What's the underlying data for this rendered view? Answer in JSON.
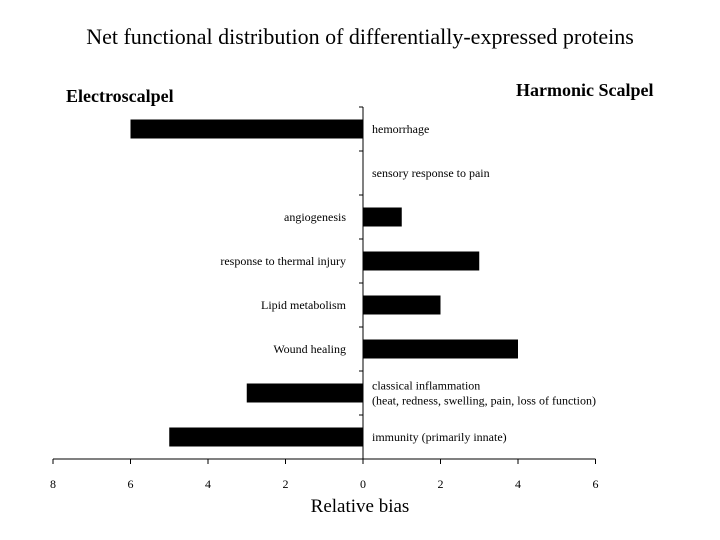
{
  "chart_data": {
    "type": "bar",
    "orientation": "horizontal",
    "title": "Net functional distribution of differentially-expressed proteins",
    "left_annotation": "Electroscalpel",
    "right_annotation": "Harmonic Scalpel",
    "xlabel": "Relative bias",
    "categories": [
      {
        "name": "hemorrhage",
        "lines": [
          "hemorrhage"
        ],
        "value": -6,
        "label_side": "right"
      },
      {
        "name": "sensory response to pain",
        "lines": [
          "sensory response to pain"
        ],
        "value": 0,
        "label_side": "right"
      },
      {
        "name": "angiogenesis",
        "lines": [
          "angiogenesis"
        ],
        "value": 1,
        "label_side": "left"
      },
      {
        "name": "response to thermal injury",
        "lines": [
          "response to thermal injury"
        ],
        "value": 3,
        "label_side": "left"
      },
      {
        "name": "Lipid metabolism",
        "lines": [
          "Lipid metabolism"
        ],
        "value": 2,
        "label_side": "left"
      },
      {
        "name": "Wound healing",
        "lines": [
          "Wound healing"
        ],
        "value": 4,
        "label_side": "left"
      },
      {
        "name": "classical inflammation (heat, redness, swelling, pain, loss of function)",
        "lines": [
          "classical inflammation",
          "(heat, redness, swelling, pain, loss of function)"
        ],
        "value": -3,
        "label_side": "right"
      },
      {
        "name": "immunity (primarily innate)",
        "lines": [
          "immunity (primarily innate)"
        ],
        "value": -5,
        "label_side": "right"
      }
    ],
    "xlim": [
      -8,
      6
    ],
    "xticks": [
      -8,
      -6,
      -4,
      -2,
      0,
      2,
      4,
      6
    ],
    "xtick_labels": [
      "8",
      "6",
      "4",
      "2",
      "0",
      "2",
      "4",
      "6"
    ],
    "bar_color": "#000000",
    "grid": false,
    "legend": "none"
  }
}
